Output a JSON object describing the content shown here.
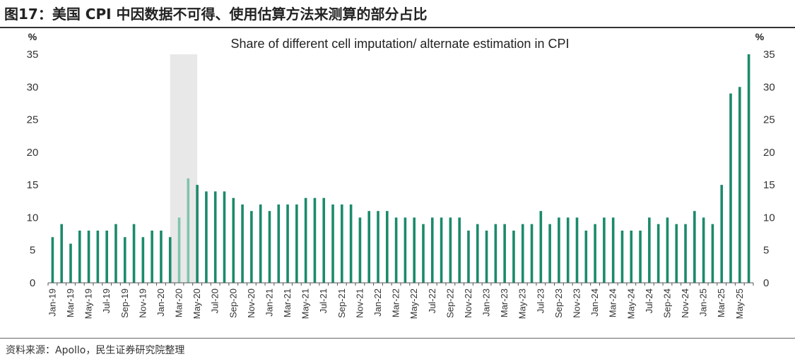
{
  "figure": {
    "title": "图17：美国 CPI 中因数据不可得、使用估算方法来测算的部分占比",
    "source": "资料来源：Apollo，民生证券研究院整理"
  },
  "colors": {
    "bar": "#1b8a6b",
    "bar_highlight": "#7fc4ae",
    "shade": "#d9d9d9",
    "axis": "#555555"
  },
  "chart_data": {
    "type": "bar",
    "title": "Share of different cell imputation/ alternate estimation in CPI",
    "ylabel_left": "%",
    "ylabel_right": "%",
    "ylim": [
      0,
      35
    ],
    "yticks": [
      0,
      5,
      10,
      15,
      20,
      25,
      30,
      35
    ],
    "grid": false,
    "categories": [
      "Jan-19",
      "Feb-19",
      "Mar-19",
      "Apr-19",
      "May-19",
      "Jun-19",
      "Jul-19",
      "Aug-19",
      "Sep-19",
      "Oct-19",
      "Nov-19",
      "Dec-19",
      "Jan-20",
      "Feb-20",
      "Mar-20",
      "Apr-20",
      "May-20",
      "Jun-20",
      "Jul-20",
      "Aug-20",
      "Sep-20",
      "Oct-20",
      "Nov-20",
      "Dec-20",
      "Jan-21",
      "Feb-21",
      "Mar-21",
      "Apr-21",
      "May-21",
      "Jun-21",
      "Jul-21",
      "Aug-21",
      "Sep-21",
      "Oct-21",
      "Nov-21",
      "Dec-21",
      "Jan-22",
      "Feb-22",
      "Mar-22",
      "Apr-22",
      "May-22",
      "Jun-22",
      "Jul-22",
      "Aug-22",
      "Sep-22",
      "Oct-22",
      "Nov-22",
      "Dec-22",
      "Jan-23",
      "Feb-23",
      "Mar-23",
      "Apr-23",
      "May-23",
      "Jun-23",
      "Jul-23",
      "Aug-23",
      "Sep-23",
      "Oct-23",
      "Nov-23",
      "Dec-23",
      "Jan-24",
      "Feb-24",
      "Mar-24",
      "Apr-24",
      "May-24",
      "Jun-24",
      "Jul-24",
      "Aug-24",
      "Sep-24",
      "Oct-24",
      "Nov-24",
      "Dec-24",
      "Jan-25",
      "Feb-25",
      "Mar-25",
      "Apr-25",
      "May-25",
      "Jun-25"
    ],
    "values": [
      7,
      9,
      6,
      8,
      8,
      8,
      8,
      9,
      7,
      9,
      7,
      8,
      8,
      7,
      10,
      16,
      15,
      14,
      14,
      14,
      13,
      12,
      11,
      12,
      11,
      12,
      12,
      12,
      13,
      13,
      13,
      12,
      12,
      12,
      10,
      11,
      11,
      11,
      10,
      10,
      10,
      9,
      10,
      10,
      10,
      10,
      8,
      9,
      8,
      9,
      9,
      8,
      9,
      9,
      11,
      9,
      10,
      10,
      10,
      8,
      9,
      10,
      10,
      8,
      8,
      8,
      10,
      9,
      10,
      9,
      9,
      11,
      10,
      9,
      15,
      29,
      30,
      35
    ],
    "highlight_categories": [
      "Mar-20",
      "Apr-20"
    ],
    "shaded_range": [
      "Mar-20",
      "Apr-20"
    ]
  }
}
